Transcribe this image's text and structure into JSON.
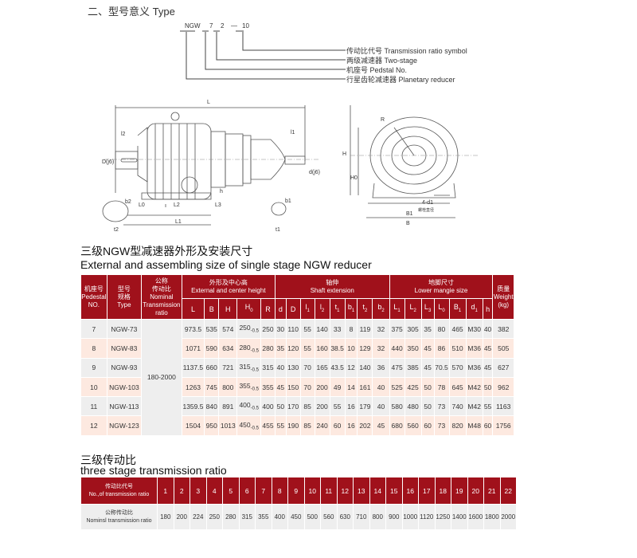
{
  "type_section": {
    "title": "二、型号意义  Type",
    "code": {
      "ngw": "NGW",
      "pedestal": "7",
      "stage": "2",
      "dash": "—",
      "ratio": "10"
    },
    "legend": [
      "传动比代号  Transmission ratio symbol",
      "两级减速器    Two-stage",
      "机座号  Pedstal No.",
      "行星齿轮减速器    Planetary reducer"
    ]
  },
  "diagram": {
    "labels": {
      "L": "L",
      "l2": "l2",
      "D": "D(j6)",
      "l1": "l1",
      "d": "d(j6)",
      "h": "h",
      "L0": "L0",
      "L2": "L2",
      "L3": "L3",
      "L1": "L1",
      "b2": "b2",
      "t2": "t2",
      "b1": "b1",
      "t1": "t1",
      "R": "R",
      "H": "H",
      "H0": "H0",
      "d1": "4-d1",
      "bolt": "螺栓直径",
      "B1": "B1",
      "B": "B"
    }
  },
  "size_section": {
    "title_cn": "三级NGW型减速器外形及安装尺寸",
    "title_en": "External and assembling size of single stage NGW reducer"
  },
  "size_table": {
    "headers": {
      "pedestal": [
        "机座号",
        "Pedestal",
        "NO."
      ],
      "type": [
        "型号",
        "规格",
        "Type"
      ],
      "ratio": [
        "公称",
        "传动比",
        "Nominal",
        "Transmission",
        "ratio"
      ],
      "external": [
        "外形及中心高",
        "External and center height"
      ],
      "shaft": [
        "轴伸",
        "Shaft extension"
      ],
      "lower": [
        "地脚尺寸",
        "Lower mangie size"
      ],
      "weight": [
        "质量",
        "Weight",
        "(kg)"
      ]
    },
    "sub_columns": [
      {
        "t": "L",
        "s": ""
      },
      {
        "t": "B",
        "s": ""
      },
      {
        "t": "H",
        "s": ""
      },
      {
        "t": "H",
        "s": "0"
      },
      {
        "t": "R",
        "s": ""
      },
      {
        "t": "d",
        "s": ""
      },
      {
        "t": "D",
        "s": ""
      },
      {
        "t": "l",
        "s": "1"
      },
      {
        "t": "l",
        "s": "2"
      },
      {
        "t": "t",
        "s": "1"
      },
      {
        "t": "b",
        "s": "1"
      },
      {
        "t": "t",
        "s": "2"
      },
      {
        "t": "b",
        "s": "2"
      },
      {
        "t": "L",
        "s": "1"
      },
      {
        "t": "L",
        "s": "2"
      },
      {
        "t": "L",
        "s": "3"
      },
      {
        "t": "L",
        "s": "0"
      },
      {
        "t": "B",
        "s": "1"
      },
      {
        "t": "d",
        "s": "1"
      },
      {
        "t": "h",
        "s": ""
      }
    ],
    "nominal_ratio": "180-2000",
    "h0_tolerance": "-0.5",
    "rows": [
      {
        "pedestal": "7",
        "type": "NGW-73",
        "L": "973.5",
        "B": "535",
        "H": "574",
        "H0": "250",
        "R": "250",
        "d": "30",
        "D": "110",
        "l1": "55",
        "l2": "140",
        "t1": "33",
        "b1": "8",
        "t2": "119",
        "b2": "32",
        "L1": "375",
        "L2": "305",
        "L3": "35",
        "L0": "80",
        "B1": "465",
        "d1": "M30",
        "h": "40",
        "weight": "382"
      },
      {
        "pedestal": "8",
        "type": "NGW-83",
        "L": "1071",
        "B": "590",
        "H": "634",
        "H0": "280",
        "R": "280",
        "d": "35",
        "D": "120",
        "l1": "55",
        "l2": "160",
        "t1": "38.5",
        "b1": "10",
        "t2": "129",
        "b2": "32",
        "L1": "440",
        "L2": "350",
        "L3": "45",
        "L0": "86",
        "B1": "510",
        "d1": "M36",
        "h": "45",
        "weight": "505"
      },
      {
        "pedestal": "9",
        "type": "NGW-93",
        "L": "1137.5",
        "B": "660",
        "H": "721",
        "H0": "315",
        "R": "315",
        "d": "40",
        "D": "130",
        "l1": "70",
        "l2": "165",
        "t1": "43.5",
        "b1": "12",
        "t2": "140",
        "b2": "36",
        "L1": "475",
        "L2": "385",
        "L3": "45",
        "L0": "70.5",
        "B1": "570",
        "d1": "M36",
        "h": "45",
        "weight": "627"
      },
      {
        "pedestal": "10",
        "type": "NGW-103",
        "L": "1263",
        "B": "745",
        "H": "800",
        "H0": "355",
        "R": "355",
        "d": "45",
        "D": "150",
        "l1": "70",
        "l2": "200",
        "t1": "49",
        "b1": "14",
        "t2": "161",
        "b2": "40",
        "L1": "525",
        "L2": "425",
        "L3": "50",
        "L0": "78",
        "B1": "645",
        "d1": "M42",
        "h": "50",
        "weight": "962"
      },
      {
        "pedestal": "11",
        "type": "NGW-113",
        "L": "1359.5",
        "B": "840",
        "H": "891",
        "H0": "400",
        "R": "400",
        "d": "50",
        "D": "170",
        "l1": "85",
        "l2": "200",
        "t1": "55",
        "b1": "16",
        "t2": "179",
        "b2": "40",
        "L1": "580",
        "L2": "480",
        "L3": "50",
        "L0": "73",
        "B1": "740",
        "d1": "M42",
        "h": "55",
        "weight": "1163"
      },
      {
        "pedestal": "12",
        "type": "NGW-123",
        "L": "1504",
        "B": "950",
        "H": "1013",
        "H0": "450",
        "R": "455",
        "d": "55",
        "D": "190",
        "l1": "85",
        "l2": "240",
        "t1": "60",
        "b1": "16",
        "t2": "202",
        "b2": "45",
        "L1": "680",
        "L2": "560",
        "L3": "60",
        "L0": "73",
        "B1": "820",
        "d1": "M48",
        "h": "60",
        "weight": "1756"
      }
    ]
  },
  "ratio_section": {
    "title_cn": "三级传动比",
    "title_en": "three stage transmission ratio"
  },
  "ratio_table": {
    "header_label": [
      "传动比代号",
      "No.,of transmission ratio"
    ],
    "row_label": [
      "公称传动比",
      "Nominsl transmission ratio"
    ],
    "codes": [
      "1",
      "2",
      "3",
      "4",
      "5",
      "6",
      "7",
      "8",
      "9",
      "10",
      "11",
      "12",
      "13",
      "14",
      "15",
      "16",
      "17",
      "18",
      "19",
      "20",
      "21",
      "22"
    ],
    "ratios": [
      "180",
      "200",
      "224",
      "250",
      "280",
      "315",
      "355",
      "400",
      "450",
      "500",
      "560",
      "630",
      "710",
      "800",
      "900",
      "1000",
      "1120",
      "1250",
      "1400",
      "1600",
      "1800",
      "2000"
    ]
  },
  "colors": {
    "header_red": "#a0111b",
    "row_gray": "#eeeeee",
    "row_pink": "#fde9e0"
  }
}
